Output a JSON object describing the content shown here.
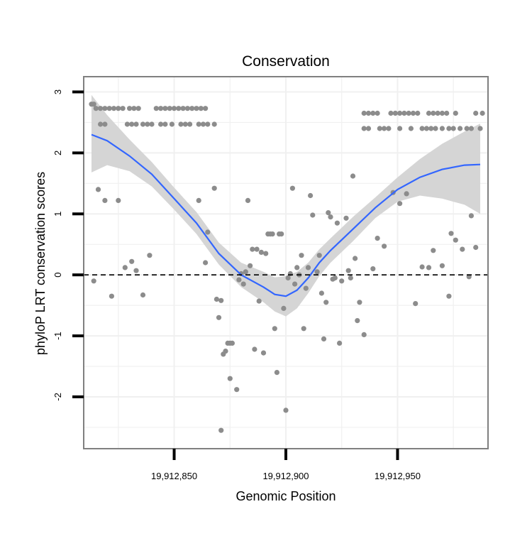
{
  "chart_data": {
    "type": "scatter",
    "title": "Conservation",
    "xlabel": "Genomic Position",
    "ylabel": "phyloP LRT conservation scores",
    "xlim": [
      19912809.5,
      19912990.5
    ],
    "ylim": [
      -2.85,
      3.25
    ],
    "x_ticks": [
      {
        "value": 19912850,
        "label": "19,912,850"
      },
      {
        "value": 19912900,
        "label": "19,912,900"
      },
      {
        "value": 19912950,
        "label": "19,912,950"
      }
    ],
    "y_ticks": [
      {
        "value": -2,
        "label": "-2"
      },
      {
        "value": -1,
        "label": "-1"
      },
      {
        "value": 0,
        "label": "0"
      },
      {
        "value": 1,
        "label": "1"
      },
      {
        "value": 2,
        "label": "2"
      },
      {
        "value": 3,
        "label": "3"
      }
    ],
    "reference_line": {
      "y": 0,
      "style": "dashed"
    },
    "colors": {
      "points": "#8c8c8c",
      "smooth": "#3366ff",
      "band": "#d3d3d3",
      "grid": "#f0f0f0",
      "border": "#808080"
    },
    "smooth": {
      "x": [
        19912813,
        19912820,
        19912830,
        19912840,
        19912850,
        19912860,
        19912870,
        19912880,
        19912890,
        19912895,
        19912900,
        19912905,
        19912910,
        19912915,
        19912920,
        19912930,
        19912940,
        19912950,
        19912960,
        19912970,
        19912980,
        19912987
      ],
      "y": [
        2.3,
        2.2,
        1.95,
        1.65,
        1.25,
        0.85,
        0.35,
        0.0,
        -0.2,
        -0.32,
        -0.35,
        -0.25,
        -0.05,
        0.2,
        0.4,
        0.75,
        1.1,
        1.4,
        1.6,
        1.73,
        1.8,
        1.81
      ],
      "lower": [
        1.68,
        1.8,
        1.7,
        1.45,
        1.07,
        0.67,
        0.17,
        -0.2,
        -0.45,
        -0.6,
        -0.68,
        -0.55,
        -0.3,
        -0.02,
        0.2,
        0.55,
        0.93,
        1.2,
        1.3,
        1.25,
        1.15,
        1.0
      ],
      "upper": [
        2.95,
        2.62,
        2.22,
        1.85,
        1.43,
        1.03,
        0.53,
        0.2,
        0.05,
        -0.04,
        -0.02,
        0.05,
        0.2,
        0.42,
        0.6,
        0.95,
        1.27,
        1.6,
        1.9,
        2.15,
        2.35,
        2.48
      ]
    },
    "points": [
      [
        19912813,
        2.8
      ],
      [
        19912814,
        2.8
      ],
      [
        19912815,
        2.73
      ],
      [
        19912817,
        2.73
      ],
      [
        19912819,
        2.73
      ],
      [
        19912821,
        2.73
      ],
      [
        19912823,
        2.73
      ],
      [
        19912825,
        2.73
      ],
      [
        19912827,
        2.73
      ],
      [
        19912830,
        2.73
      ],
      [
        19912832,
        2.73
      ],
      [
        19912834,
        2.73
      ],
      [
        19912817,
        2.47
      ],
      [
        19912819,
        2.47
      ],
      [
        19912829,
        2.47
      ],
      [
        19912831,
        2.47
      ],
      [
        19912833,
        2.47
      ],
      [
        19912836,
        2.47
      ],
      [
        19912838,
        2.47
      ],
      [
        19912840,
        2.47
      ],
      [
        19912844,
        2.47
      ],
      [
        19912846,
        2.47
      ],
      [
        19912849,
        2.47
      ],
      [
        19912853,
        2.47
      ],
      [
        19912855,
        2.47
      ],
      [
        19912857,
        2.47
      ],
      [
        19912861,
        2.47
      ],
      [
        19912863,
        2.47
      ],
      [
        19912865,
        2.47
      ],
      [
        19912868,
        2.47
      ],
      [
        19912842,
        2.73
      ],
      [
        19912844,
        2.73
      ],
      [
        19912846,
        2.73
      ],
      [
        19912848,
        2.73
      ],
      [
        19912850,
        2.73
      ],
      [
        19912852,
        2.73
      ],
      [
        19912854,
        2.73
      ],
      [
        19912856,
        2.73
      ],
      [
        19912858,
        2.73
      ],
      [
        19912860,
        2.73
      ],
      [
        19912862,
        2.73
      ],
      [
        19912864,
        2.73
      ],
      [
        19912814,
        -0.1
      ],
      [
        19912816,
        1.4
      ],
      [
        19912819,
        1.22
      ],
      [
        19912822,
        -0.35
      ],
      [
        19912825,
        1.22
      ],
      [
        19912828,
        0.12
      ],
      [
        19912831,
        0.22
      ],
      [
        19912833,
        0.07
      ],
      [
        19912836,
        -0.33
      ],
      [
        19912839,
        0.32
      ],
      [
        19912861,
        1.22
      ],
      [
        19912864,
        0.2
      ],
      [
        19912865,
        0.7
      ],
      [
        19912868,
        1.42
      ],
      [
        19912869,
        -0.4
      ],
      [
        19912870,
        -0.7
      ],
      [
        19912871,
        -2.55
      ],
      [
        19912871,
        -0.42
      ],
      [
        19912872,
        -1.3
      ],
      [
        19912873,
        -1.25
      ],
      [
        19912874,
        -1.12
      ],
      [
        19912875,
        -1.12
      ],
      [
        19912875,
        -1.7
      ],
      [
        19912876,
        -1.12
      ],
      [
        19912878,
        -1.88
      ],
      [
        19912879,
        -0.08
      ],
      [
        19912880,
        0.02
      ],
      [
        19912881,
        -0.15
      ],
      [
        19912882,
        0.05
      ],
      [
        19912883,
        1.22
      ],
      [
        19912884,
        0.15
      ],
      [
        19912885,
        0.42
      ],
      [
        19912886,
        -1.22
      ],
      [
        19912887,
        0.42
      ],
      [
        19912888,
        -0.43
      ],
      [
        19912889,
        0.37
      ],
      [
        19912890,
        -1.28
      ],
      [
        19912891,
        0.35
      ],
      [
        19912892,
        0.67
      ],
      [
        19912893,
        0.67
      ],
      [
        19912894,
        0.67
      ],
      [
        19912895,
        -0.88
      ],
      [
        19912896,
        -1.6
      ],
      [
        19912897,
        0.67
      ],
      [
        19912898,
        0.67
      ],
      [
        19912899,
        -0.55
      ],
      [
        19912900,
        -2.22
      ],
      [
        19912901,
        -0.05
      ],
      [
        19912902,
        0.02
      ],
      [
        19912903,
        1.42
      ],
      [
        19912904,
        -0.15
      ],
      [
        19912905,
        0.12
      ],
      [
        19912906,
        0.0
      ],
      [
        19912907,
        0.32
      ],
      [
        19912908,
        -0.88
      ],
      [
        19912909,
        -0.22
      ],
      [
        19912910,
        0.12
      ],
      [
        19912911,
        1.3
      ],
      [
        19912912,
        0.98
      ],
      [
        19912914,
        0.05
      ],
      [
        19912915,
        0.32
      ],
      [
        19912916,
        -0.3
      ],
      [
        19912917,
        -1.05
      ],
      [
        19912918,
        -0.45
      ],
      [
        19912919,
        1.02
      ],
      [
        19912920,
        0.95
      ],
      [
        19912921,
        -0.07
      ],
      [
        19912922,
        -0.05
      ],
      [
        19912923,
        0.85
      ],
      [
        19912924,
        -1.12
      ],
      [
        19912925,
        -0.1
      ],
      [
        19912927,
        0.93
      ],
      [
        19912928,
        0.07
      ],
      [
        19912929,
        -0.05
      ],
      [
        19912930,
        1.62
      ],
      [
        19912931,
        0.27
      ],
      [
        19912932,
        -0.75
      ],
      [
        19912933,
        -0.45
      ],
      [
        19912935,
        -0.98
      ],
      [
        19912939,
        0.1
      ],
      [
        19912941,
        0.6
      ],
      [
        19912944,
        0.47
      ],
      [
        19912948,
        1.35
      ],
      [
        19912951,
        1.17
      ],
      [
        19912954,
        1.33
      ],
      [
        19912958,
        -0.47
      ],
      [
        19912961,
        0.13
      ],
      [
        19912964,
        0.12
      ],
      [
        19912966,
        0.4
      ],
      [
        19912970,
        0.15
      ],
      [
        19912973,
        -0.35
      ],
      [
        19912974,
        0.68
      ],
      [
        19912976,
        0.57
      ],
      [
        19912979,
        0.42
      ],
      [
        19912982,
        -0.03
      ],
      [
        19912983,
        0.97
      ],
      [
        19912985,
        0.45
      ],
      [
        19912935,
        2.65
      ],
      [
        19912937,
        2.65
      ],
      [
        19912939,
        2.65
      ],
      [
        19912941,
        2.65
      ],
      [
        19912947,
        2.65
      ],
      [
        19912949,
        2.65
      ],
      [
        19912951,
        2.65
      ],
      [
        19912953,
        2.65
      ],
      [
        19912955,
        2.65
      ],
      [
        19912957,
        2.65
      ],
      [
        19912959,
        2.65
      ],
      [
        19912964,
        2.65
      ],
      [
        19912966,
        2.65
      ],
      [
        19912968,
        2.65
      ],
      [
        19912970,
        2.65
      ],
      [
        19912972,
        2.65
      ],
      [
        19912976,
        2.65
      ],
      [
        19912985,
        2.65
      ],
      [
        19912988,
        2.65
      ],
      [
        19912935,
        2.4
      ],
      [
        19912937,
        2.4
      ],
      [
        19912942,
        2.4
      ],
      [
        19912944,
        2.4
      ],
      [
        19912946,
        2.4
      ],
      [
        19912951,
        2.4
      ],
      [
        19912956,
        2.4
      ],
      [
        19912961,
        2.4
      ],
      [
        19912963,
        2.4
      ],
      [
        19912965,
        2.4
      ],
      [
        19912967,
        2.4
      ],
      [
        19912970,
        2.4
      ],
      [
        19912973,
        2.4
      ],
      [
        19912975,
        2.4
      ],
      [
        19912978,
        2.4
      ],
      [
        19912981,
        2.4
      ],
      [
        19912983,
        2.4
      ],
      [
        19912987,
        2.4
      ]
    ]
  }
}
